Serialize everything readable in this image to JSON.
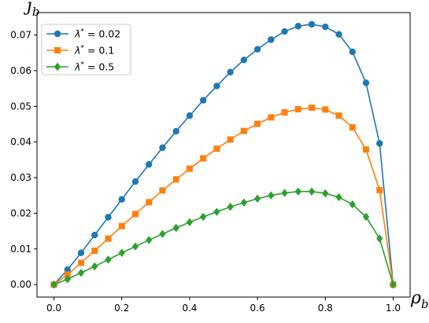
{
  "chart_data": {
    "type": "line",
    "xlabel": {
      "main": "ρ",
      "sub": "b"
    },
    "ylabel": {
      "main": "j",
      "sub": "b"
    },
    "xlim": [
      -0.05,
      1.05
    ],
    "ylim": [
      -0.0035,
      0.0763
    ],
    "xticks": [
      0.0,
      0.2,
      0.4,
      0.6,
      0.8,
      1.0
    ],
    "xtick_labels": [
      "0.0",
      "0.2",
      "0.4",
      "0.6",
      "0.8",
      "1.0"
    ],
    "yticks": [
      0.0,
      0.01,
      0.02,
      0.03,
      0.04,
      0.05,
      0.06,
      0.07
    ],
    "ytick_labels": [
      "0.00",
      "0.01",
      "0.02",
      "0.03",
      "0.04",
      "0.05",
      "0.06",
      "0.07"
    ],
    "grid": false,
    "legend_position": "top-left",
    "x": [
      0.0,
      0.04,
      0.08,
      0.12,
      0.16,
      0.2,
      0.24,
      0.28,
      0.32,
      0.36,
      0.4,
      0.44,
      0.48,
      0.52,
      0.56,
      0.6,
      0.64,
      0.68,
      0.72,
      0.76,
      0.8,
      0.84,
      0.88,
      0.92,
      0.96,
      1.0
    ],
    "series": [
      {
        "name": "λ* = 0.02",
        "legend_main": "λ",
        "legend_sup": "*",
        "legend_rest": " = 0.02",
        "color": "#1f77b4",
        "marker": "circle",
        "values": [
          0.0,
          0.0042,
          0.0089,
          0.0139,
          0.0189,
          0.0239,
          0.0289,
          0.0337,
          0.0384,
          0.043,
          0.0474,
          0.0517,
          0.0557,
          0.0596,
          0.063,
          0.066,
          0.0687,
          0.071,
          0.0725,
          0.073,
          0.0723,
          0.0702,
          0.0653,
          0.0566,
          0.0396,
          0.0
        ]
      },
      {
        "name": "λ* = 0.1",
        "legend_main": "λ",
        "legend_sup": "*",
        "legend_rest": " = 0.1",
        "color": "#ff7f0e",
        "marker": "square",
        "values": [
          0.0,
          0.0028,
          0.0061,
          0.0095,
          0.0129,
          0.0164,
          0.0198,
          0.0231,
          0.0264,
          0.0295,
          0.0325,
          0.0354,
          0.0381,
          0.0407,
          0.0431,
          0.0451,
          0.0469,
          0.0483,
          0.0492,
          0.0496,
          0.0491,
          0.0474,
          0.0441,
          0.0379,
          0.0265,
          0.0
        ]
      },
      {
        "name": "λ* = 0.5",
        "legend_main": "λ",
        "legend_sup": "*",
        "legend_rest": " = 0.5",
        "color": "#2ca02c",
        "marker": "diamond",
        "values": [
          0.0,
          0.0015,
          0.0033,
          0.0051,
          0.007,
          0.0089,
          0.0107,
          0.0125,
          0.0142,
          0.0159,
          0.0175,
          0.019,
          0.0204,
          0.0218,
          0.023,
          0.0241,
          0.025,
          0.0257,
          0.0261,
          0.0261,
          0.0256,
          0.0245,
          0.0225,
          0.019,
          0.0129,
          0.0
        ]
      }
    ]
  }
}
